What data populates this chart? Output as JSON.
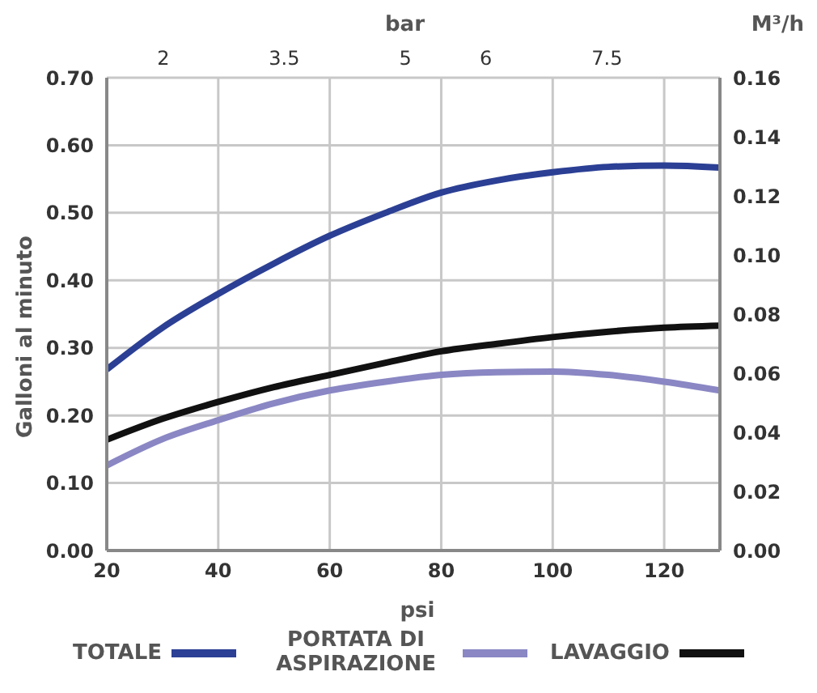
{
  "chart_data": {
    "type": "line",
    "xlabel": "psi",
    "ylabel": "Galloni al minuto",
    "x2label": "bar",
    "y2label": "M³/h",
    "x": [
      20,
      30,
      40,
      50,
      60,
      70,
      80,
      90,
      100,
      110,
      120,
      130
    ],
    "series": [
      {
        "name": "TOTALE",
        "color": "#2b3f94",
        "values": [
          0.268,
          0.33,
          0.38,
          0.425,
          0.466,
          0.5,
          0.53,
          0.548,
          0.56,
          0.568,
          0.57,
          0.567
        ]
      },
      {
        "name": "PORTATA DI ASPIRAZIONE",
        "color": "#8a87c4",
        "values": [
          0.126,
          0.165,
          0.193,
          0.218,
          0.237,
          0.25,
          0.26,
          0.264,
          0.265,
          0.26,
          0.25,
          0.237
        ]
      },
      {
        "name": "LAVAGGIO",
        "color": "#111111",
        "values": [
          0.164,
          0.195,
          0.22,
          0.242,
          0.26,
          0.278,
          0.295,
          0.306,
          0.316,
          0.324,
          0.33,
          0.333
        ]
      }
    ],
    "xlim": [
      20,
      130
    ],
    "xticks": [
      20,
      40,
      60,
      80,
      100,
      120
    ],
    "x2lim": [
      1.3,
      8.9
    ],
    "x2ticks": [
      2,
      3.5,
      5,
      6,
      7.5
    ],
    "ylim": [
      0,
      0.7
    ],
    "yticks": [
      {
        "value": 0,
        "label": "0.00"
      },
      {
        "value": 0.1,
        "label": "0.10"
      },
      {
        "value": 0.2,
        "label": "0.20"
      },
      {
        "value": 0.3,
        "label": "0.30"
      },
      {
        "value": 0.4,
        "label": "0.40"
      },
      {
        "value": 0.5,
        "label": "0.50"
      },
      {
        "value": 0.6,
        "label": "0.60"
      },
      {
        "value": 0.7,
        "label": "0.70"
      }
    ],
    "y2lim": [
      0,
      0.16
    ],
    "y2ticks": [
      {
        "value": 0,
        "label": "0.00"
      },
      {
        "value": 0.02,
        "label": "0.02"
      },
      {
        "value": 0.04,
        "label": "0.04"
      },
      {
        "value": 0.06,
        "label": "0.06"
      },
      {
        "value": 0.08,
        "label": "0.08"
      },
      {
        "value": 0.1,
        "label": "0.10"
      },
      {
        "value": 0.12,
        "label": "0.12"
      },
      {
        "value": 0.14,
        "label": "0.14"
      },
      {
        "value": 0.16,
        "label": "0.16"
      }
    ],
    "grid": true,
    "legend": "bottom",
    "marker": "none",
    "line_style": "solid"
  }
}
